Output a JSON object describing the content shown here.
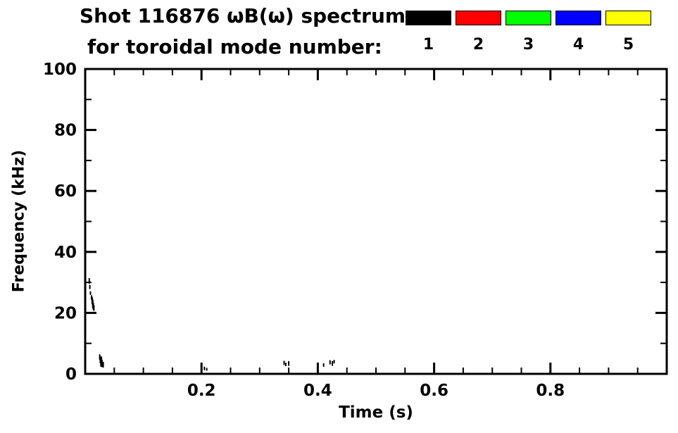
{
  "title": {
    "line1": "Shot 116876 ωB(ω) spectrum",
    "line2": "for toroidal mode number:"
  },
  "legend": {
    "entries": [
      {
        "label": "1",
        "color": "#000000"
      },
      {
        "label": "2",
        "color": "#ff0000"
      },
      {
        "label": "3",
        "color": "#00ff00"
      },
      {
        "label": "4",
        "color": "#0000ff"
      },
      {
        "label": "5",
        "color": "#ffff00"
      }
    ]
  },
  "chart_data": {
    "type": "scatter",
    "title": "Shot 116876 ωB(ω) spectrum for toroidal mode number:",
    "xlabel": "Time (s)",
    "ylabel": "Frequency (kHz)",
    "xlim": [
      0,
      1.0
    ],
    "ylim": [
      0,
      100
    ],
    "xticks": [
      {
        "v": 0.2,
        "label": "0.2"
      },
      {
        "v": 0.4,
        "label": "0.4"
      },
      {
        "v": 0.6,
        "label": "0.6"
      },
      {
        "v": 0.8,
        "label": "0.8"
      }
    ],
    "yticks": [
      {
        "v": 0,
        "label": "0"
      },
      {
        "v": 20,
        "label": "20"
      },
      {
        "v": 40,
        "label": "40"
      },
      {
        "v": 60,
        "label": "60"
      },
      {
        "v": 80,
        "label": "80"
      },
      {
        "v": 100,
        "label": "100"
      }
    ],
    "x_minor_step": 0.05,
    "y_minor_step": 10,
    "grid": false,
    "legend_position": "top-right",
    "series": [
      {
        "name": "1",
        "color": "#000000",
        "points": [
          [
            0.007,
            30.5,
            1.5
          ],
          [
            0.008,
            28.5,
            1.0
          ],
          [
            0.009,
            26.5,
            0.8
          ],
          [
            0.011,
            25.0,
            1.2
          ],
          [
            0.012,
            24.0,
            2.0
          ],
          [
            0.013,
            23.0,
            2.5
          ],
          [
            0.014,
            22.2,
            2.0
          ],
          [
            0.015,
            21.6,
            1.5
          ],
          [
            0.025,
            5.5,
            1.5
          ],
          [
            0.026,
            4.6,
            2.0
          ],
          [
            0.027,
            3.8,
            2.5
          ],
          [
            0.028,
            4.2,
            2.5
          ],
          [
            0.029,
            3.4,
            2.0
          ],
          [
            0.031,
            3.0,
            1.5
          ],
          [
            0.205,
            1.8,
            0.8
          ],
          [
            0.209,
            1.5,
            0.6
          ],
          [
            0.342,
            3.6,
            1.0
          ],
          [
            0.345,
            3.1,
            0.8
          ],
          [
            0.35,
            3.4,
            1.2
          ],
          [
            0.41,
            2.9,
            0.8
          ],
          [
            0.421,
            3.8,
            1.0
          ],
          [
            0.425,
            3.4,
            1.2
          ],
          [
            0.428,
            4.0,
            0.8
          ]
        ]
      },
      {
        "name": "2",
        "color": "#ff0000",
        "points": []
      },
      {
        "name": "3",
        "color": "#00ff00",
        "points": []
      },
      {
        "name": "4",
        "color": "#0000ff",
        "points": []
      },
      {
        "name": "5",
        "color": "#ffff00",
        "points": []
      }
    ]
  }
}
